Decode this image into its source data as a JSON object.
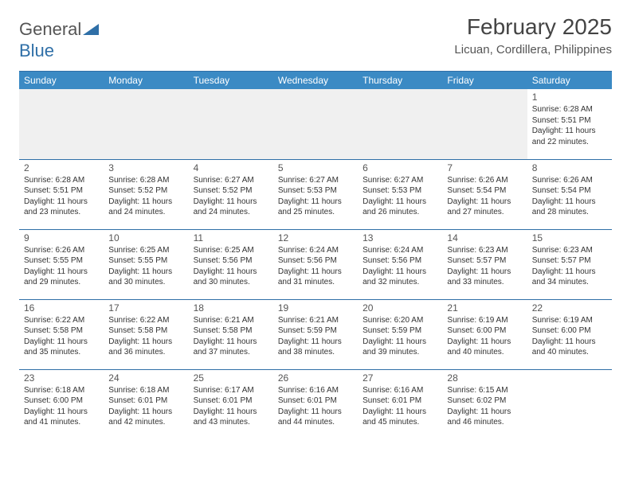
{
  "logo": {
    "text1": "General",
    "text2": "Blue"
  },
  "title": "February 2025",
  "location": "Licuan, Cordillera, Philippines",
  "colors": {
    "header_bg": "#3b8ac4",
    "divider": "#2f6fa7",
    "text": "#333333",
    "muted": "#555555",
    "empty_bg": "#f0f0f0",
    "page_bg": "#ffffff"
  },
  "day_headers": [
    "Sunday",
    "Monday",
    "Tuesday",
    "Wednesday",
    "Thursday",
    "Friday",
    "Saturday"
  ],
  "weeks": [
    [
      {
        "day": "",
        "sunrise": "",
        "sunset": "",
        "daylight": ""
      },
      {
        "day": "",
        "sunrise": "",
        "sunset": "",
        "daylight": ""
      },
      {
        "day": "",
        "sunrise": "",
        "sunset": "",
        "daylight": ""
      },
      {
        "day": "",
        "sunrise": "",
        "sunset": "",
        "daylight": ""
      },
      {
        "day": "",
        "sunrise": "",
        "sunset": "",
        "daylight": ""
      },
      {
        "day": "",
        "sunrise": "",
        "sunset": "",
        "daylight": ""
      },
      {
        "day": "1",
        "sunrise": "Sunrise: 6:28 AM",
        "sunset": "Sunset: 5:51 PM",
        "daylight": "Daylight: 11 hours and 22 minutes."
      }
    ],
    [
      {
        "day": "2",
        "sunrise": "Sunrise: 6:28 AM",
        "sunset": "Sunset: 5:51 PM",
        "daylight": "Daylight: 11 hours and 23 minutes."
      },
      {
        "day": "3",
        "sunrise": "Sunrise: 6:28 AM",
        "sunset": "Sunset: 5:52 PM",
        "daylight": "Daylight: 11 hours and 24 minutes."
      },
      {
        "day": "4",
        "sunrise": "Sunrise: 6:27 AM",
        "sunset": "Sunset: 5:52 PM",
        "daylight": "Daylight: 11 hours and 24 minutes."
      },
      {
        "day": "5",
        "sunrise": "Sunrise: 6:27 AM",
        "sunset": "Sunset: 5:53 PM",
        "daylight": "Daylight: 11 hours and 25 minutes."
      },
      {
        "day": "6",
        "sunrise": "Sunrise: 6:27 AM",
        "sunset": "Sunset: 5:53 PM",
        "daylight": "Daylight: 11 hours and 26 minutes."
      },
      {
        "day": "7",
        "sunrise": "Sunrise: 6:26 AM",
        "sunset": "Sunset: 5:54 PM",
        "daylight": "Daylight: 11 hours and 27 minutes."
      },
      {
        "day": "8",
        "sunrise": "Sunrise: 6:26 AM",
        "sunset": "Sunset: 5:54 PM",
        "daylight": "Daylight: 11 hours and 28 minutes."
      }
    ],
    [
      {
        "day": "9",
        "sunrise": "Sunrise: 6:26 AM",
        "sunset": "Sunset: 5:55 PM",
        "daylight": "Daylight: 11 hours and 29 minutes."
      },
      {
        "day": "10",
        "sunrise": "Sunrise: 6:25 AM",
        "sunset": "Sunset: 5:55 PM",
        "daylight": "Daylight: 11 hours and 30 minutes."
      },
      {
        "day": "11",
        "sunrise": "Sunrise: 6:25 AM",
        "sunset": "Sunset: 5:56 PM",
        "daylight": "Daylight: 11 hours and 30 minutes."
      },
      {
        "day": "12",
        "sunrise": "Sunrise: 6:24 AM",
        "sunset": "Sunset: 5:56 PM",
        "daylight": "Daylight: 11 hours and 31 minutes."
      },
      {
        "day": "13",
        "sunrise": "Sunrise: 6:24 AM",
        "sunset": "Sunset: 5:56 PM",
        "daylight": "Daylight: 11 hours and 32 minutes."
      },
      {
        "day": "14",
        "sunrise": "Sunrise: 6:23 AM",
        "sunset": "Sunset: 5:57 PM",
        "daylight": "Daylight: 11 hours and 33 minutes."
      },
      {
        "day": "15",
        "sunrise": "Sunrise: 6:23 AM",
        "sunset": "Sunset: 5:57 PM",
        "daylight": "Daylight: 11 hours and 34 minutes."
      }
    ],
    [
      {
        "day": "16",
        "sunrise": "Sunrise: 6:22 AM",
        "sunset": "Sunset: 5:58 PM",
        "daylight": "Daylight: 11 hours and 35 minutes."
      },
      {
        "day": "17",
        "sunrise": "Sunrise: 6:22 AM",
        "sunset": "Sunset: 5:58 PM",
        "daylight": "Daylight: 11 hours and 36 minutes."
      },
      {
        "day": "18",
        "sunrise": "Sunrise: 6:21 AM",
        "sunset": "Sunset: 5:58 PM",
        "daylight": "Daylight: 11 hours and 37 minutes."
      },
      {
        "day": "19",
        "sunrise": "Sunrise: 6:21 AM",
        "sunset": "Sunset: 5:59 PM",
        "daylight": "Daylight: 11 hours and 38 minutes."
      },
      {
        "day": "20",
        "sunrise": "Sunrise: 6:20 AM",
        "sunset": "Sunset: 5:59 PM",
        "daylight": "Daylight: 11 hours and 39 minutes."
      },
      {
        "day": "21",
        "sunrise": "Sunrise: 6:19 AM",
        "sunset": "Sunset: 6:00 PM",
        "daylight": "Daylight: 11 hours and 40 minutes."
      },
      {
        "day": "22",
        "sunrise": "Sunrise: 6:19 AM",
        "sunset": "Sunset: 6:00 PM",
        "daylight": "Daylight: 11 hours and 40 minutes."
      }
    ],
    [
      {
        "day": "23",
        "sunrise": "Sunrise: 6:18 AM",
        "sunset": "Sunset: 6:00 PM",
        "daylight": "Daylight: 11 hours and 41 minutes."
      },
      {
        "day": "24",
        "sunrise": "Sunrise: 6:18 AM",
        "sunset": "Sunset: 6:01 PM",
        "daylight": "Daylight: 11 hours and 42 minutes."
      },
      {
        "day": "25",
        "sunrise": "Sunrise: 6:17 AM",
        "sunset": "Sunset: 6:01 PM",
        "daylight": "Daylight: 11 hours and 43 minutes."
      },
      {
        "day": "26",
        "sunrise": "Sunrise: 6:16 AM",
        "sunset": "Sunset: 6:01 PM",
        "daylight": "Daylight: 11 hours and 44 minutes."
      },
      {
        "day": "27",
        "sunrise": "Sunrise: 6:16 AM",
        "sunset": "Sunset: 6:01 PM",
        "daylight": "Daylight: 11 hours and 45 minutes."
      },
      {
        "day": "28",
        "sunrise": "Sunrise: 6:15 AM",
        "sunset": "Sunset: 6:02 PM",
        "daylight": "Daylight: 11 hours and 46 minutes."
      },
      {
        "day": "",
        "sunrise": "",
        "sunset": "",
        "daylight": ""
      }
    ]
  ]
}
